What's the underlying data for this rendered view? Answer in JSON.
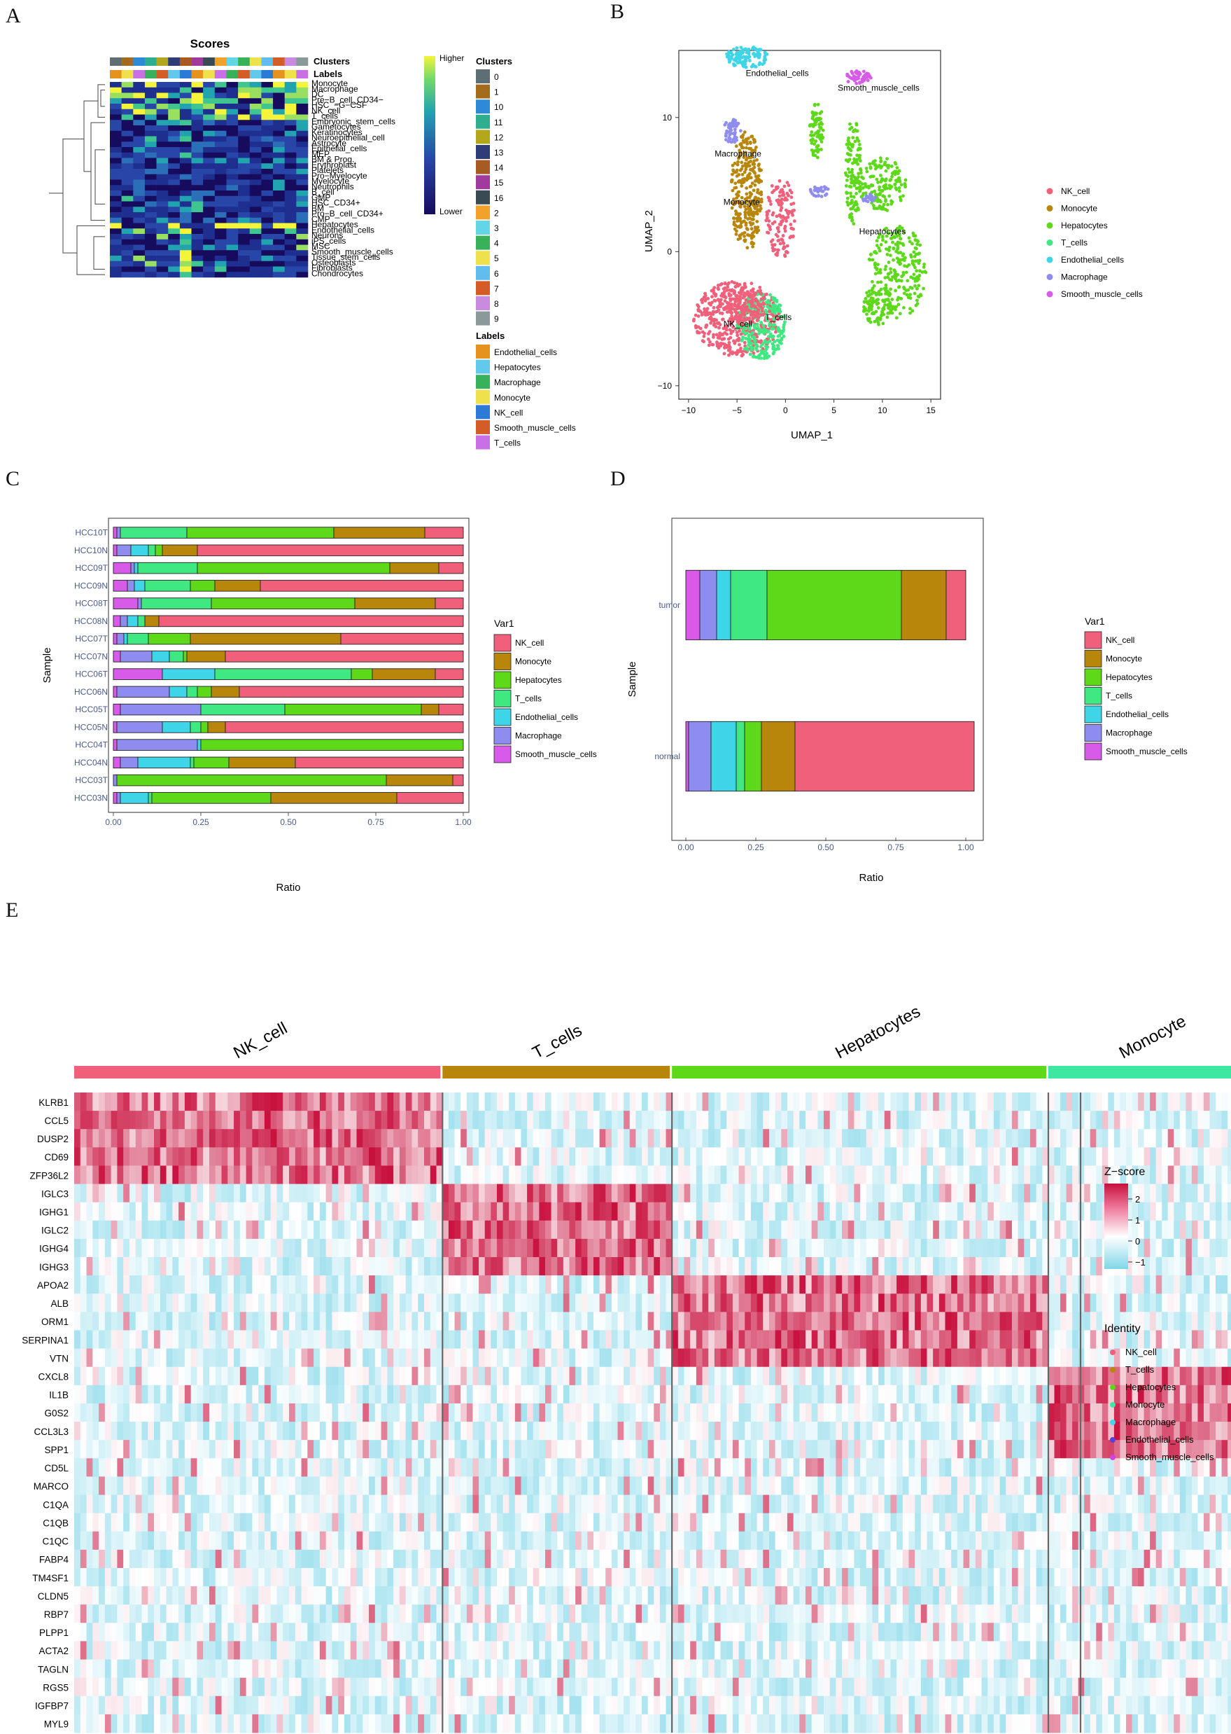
{
  "panels": {
    "a": "A",
    "b": "B",
    "c": "C",
    "d": "D",
    "e": "E"
  },
  "colors": {
    "NK_cell": "#F0607A",
    "Monocyte": "#B8860B",
    "Hepatocytes": "#5DD91A",
    "T_cells": "#3FE880",
    "Endothelial_cells": "#3FD5E8",
    "Macrophage": "#8F8CF0",
    "Smooth_muscle_cells": "#D75AE8"
  },
  "panelA": {
    "title": "Scores",
    "row_clusters": "Clusters",
    "row_labels": "Labels",
    "cell_types": [
      "Monocyte",
      "Macrophage",
      "DC",
      "Pre−B_cell_CD34−",
      "HSC_−G−CSF",
      "NK_cell",
      "T_cells",
      "Embryonic_stem_cells",
      "Gametocytes",
      "Keratinocytes",
      "Neuroepithelial_cell",
      "Astrocyte",
      "Epithelial_cells",
      "MEP",
      "BM & Prog.",
      "Erythroblast",
      "Platelets",
      "Pro−Myelocyte",
      "Myelocyte",
      "Neutrophils",
      "B_cell",
      "GMP",
      "HSC_CD34+",
      "BM",
      "Pro−B_cell_CD34+",
      "CMP",
      "Hepatocytes",
      "Endothelial_cells",
      "Neurons",
      "iPS_cells",
      "MSC",
      "Smooth_muscle_cells",
      "Tissue_stem_cells",
      "Osteoblasts",
      "Fibroblasts",
      "Chondrocytes"
    ],
    "scale_high": "Higher",
    "scale_low": "Lower",
    "clusters_legend_title": "Clusters",
    "clusters": [
      "0",
      "1",
      "10",
      "11",
      "12",
      "13",
      "14",
      "15",
      "16",
      "2",
      "3",
      "4",
      "5",
      "6",
      "7",
      "8",
      "9"
    ],
    "cluster_colors": [
      "#5E6E75",
      "#A56B1C",
      "#2E8AD6",
      "#2FAE8F",
      "#B3A81C",
      "#2E3D78",
      "#A75A22",
      "#A03A9D",
      "#3A4A55",
      "#F1A22A",
      "#62D6E6",
      "#37B15A",
      "#EEE14C",
      "#61BDEE",
      "#D45C27",
      "#C98BE0",
      "#8A9A9A"
    ],
    "labels_legend_title": "Labels",
    "labels": [
      "Endothelial_cells",
      "Hepatocytes",
      "Macrophage",
      "Monocyte",
      "NK_cell",
      "Smooth_muscle_cells",
      "T_cells"
    ],
    "label_colors": [
      "#E6921E",
      "#62C9EC",
      "#37B15A",
      "#EEE14C",
      "#2B7BD6",
      "#D45C27",
      "#C970E6"
    ]
  },
  "panelB": {
    "xlabel": "UMAP_1",
    "ylabel": "UMAP_2",
    "xticks": [
      "−10",
      "−5",
      "0",
      "5",
      "10",
      "15"
    ],
    "yticks": [
      "10",
      "0",
      "−10"
    ],
    "legend": [
      "NK_cell",
      "Monocyte",
      "Hepatocytes",
      "T_cells",
      "Endothelial_cells",
      "Macrophage",
      "Smooth_muscle_cells"
    ],
    "annotations": [
      "Endothelial_cells",
      "Smooth_muscle_cells",
      "Macrophage",
      "Monocyte",
      "Hepatocytes",
      "NK_cell",
      "T_cells"
    ]
  },
  "chart_data": [
    {
      "type": "bar",
      "orientation": "horizontal-stacked",
      "xlabel": "Ratio",
      "ylabel": "Sample",
      "xticks": [
        "0.00",
        "0.25",
        "0.50",
        "0.75",
        "1.00"
      ],
      "xlim": [
        0,
        1
      ],
      "legend_title": "Var1",
      "categories": [
        "HCC10T",
        "HCC10N",
        "HCC09T",
        "HCC09N",
        "HCC08T",
        "HCC08N",
        "HCC07T",
        "HCC07N",
        "HCC06T",
        "HCC06N",
        "HCC05T",
        "HCC05N",
        "HCC04T",
        "HCC04N",
        "HCC03T",
        "HCC03N"
      ],
      "series": [
        {
          "name": "Smooth_muscle_cells",
          "values": [
            0.01,
            0.01,
            0.05,
            0.04,
            0.07,
            0.02,
            0.01,
            0.02,
            0.14,
            0.01,
            0.02,
            0.01,
            0.01,
            0.02,
            0.0,
            0.01
          ]
        },
        {
          "name": "Macrophage",
          "values": [
            0.01,
            0.04,
            0.01,
            0.02,
            0.01,
            0.02,
            0.02,
            0.09,
            0.0,
            0.15,
            0.23,
            0.13,
            0.23,
            0.05,
            0.01,
            0.01
          ]
        },
        {
          "name": "Endothelial_cells",
          "values": [
            0.0,
            0.05,
            0.01,
            0.03,
            0.0,
            0.03,
            0.01,
            0.05,
            0.15,
            0.05,
            0.0,
            0.08,
            0.01,
            0.15,
            0.0,
            0.08
          ]
        },
        {
          "name": "T_cells",
          "values": [
            0.19,
            0.02,
            0.17,
            0.13,
            0.2,
            0.02,
            0.06,
            0.04,
            0.39,
            0.03,
            0.24,
            0.03,
            0.0,
            0.01,
            0.0,
            0.01
          ]
        },
        {
          "name": "Hepatocytes",
          "values": [
            0.42,
            0.02,
            0.55,
            0.07,
            0.41,
            0.0,
            0.12,
            0.01,
            0.06,
            0.04,
            0.39,
            0.02,
            0.75,
            0.1,
            0.77,
            0.34
          ]
        },
        {
          "name": "Monocyte",
          "values": [
            0.26,
            0.1,
            0.14,
            0.13,
            0.23,
            0.04,
            0.43,
            0.11,
            0.18,
            0.08,
            0.05,
            0.05,
            0.0,
            0.19,
            0.19,
            0.36
          ]
        },
        {
          "name": "NK_cell",
          "values": [
            0.11,
            0.76,
            0.07,
            0.58,
            0.08,
            0.87,
            0.35,
            0.68,
            0.08,
            0.64,
            0.07,
            0.68,
            0.0,
            0.48,
            0.03,
            0.19
          ]
        }
      ]
    },
    {
      "type": "bar",
      "orientation": "horizontal-stacked",
      "xlabel": "Ratio",
      "ylabel": "Sample",
      "xticks": [
        "0.00",
        "0.25",
        "0.50",
        "0.75",
        "1.00"
      ],
      "xlim": [
        0,
        1
      ],
      "legend_title": "Var1",
      "categories": [
        "tumor",
        "normal"
      ],
      "series": [
        {
          "name": "Smooth_muscle_cells",
          "values": [
            0.05,
            0.01
          ]
        },
        {
          "name": "Macrophage",
          "values": [
            0.06,
            0.08
          ]
        },
        {
          "name": "Endothelial_cells",
          "values": [
            0.05,
            0.09
          ]
        },
        {
          "name": "T_cells",
          "values": [
            0.13,
            0.03
          ]
        },
        {
          "name": "Hepatocytes",
          "values": [
            0.48,
            0.06
          ]
        },
        {
          "name": "Monocyte",
          "values": [
            0.16,
            0.12
          ]
        },
        {
          "name": "NK_cell",
          "values": [
            0.07,
            0.64
          ]
        }
      ]
    }
  ],
  "panelE": {
    "groups": [
      "NK_cell",
      "T_cells",
      "Hepatocytes",
      "Monocyte",
      "Macrophage",
      "Endothelial_cells",
      "Smooth_muscle_cells"
    ],
    "group_fractions": [
      0.366,
      0.228,
      0.374,
      0.19,
      0.088,
      0.05,
      0.042
    ],
    "group_colors": [
      "#F0607A",
      "#B8860B",
      "#5DD91A",
      "#3FE8A0",
      "#3FD5E8",
      "#8F8CF0",
      "#D75AE8"
    ],
    "genes": [
      "KLRB1",
      "CCL5",
      "DUSP2",
      "CD69",
      "ZFP36L2",
      "IGLC3",
      "IGHG1",
      "IGLC2",
      "IGHG4",
      "IGHG3",
      "APOA2",
      "ALB",
      "ORM1",
      "SERPINA1",
      "VTN",
      "CXCL8",
      "IL1B",
      "G0S2",
      "CCL3L3",
      "SPP1",
      "CD5L",
      "MARCO",
      "C1QA",
      "C1QB",
      "C1QC",
      "FABP4",
      "TM4SF1",
      "CLDN5",
      "RBP7",
      "PLPP1",
      "ACTA2",
      "TAGLN",
      "RGS5",
      "IGFBP7",
      "MYL9"
    ],
    "zscore_title": "Z−score",
    "zscore_ticks": [
      "2",
      "1",
      "0",
      "−1"
    ],
    "identity_title": "Identity",
    "identity_items": [
      "NK_cell",
      "T_cells",
      "Hepatocytes",
      "Monocyte",
      "Macrophage",
      "Endothelial_cells",
      "Smooth_muscle_cells"
    ],
    "identity_colors": [
      "#F0607A",
      "#B8860B",
      "#5DD91A",
      "#3FE8A0",
      "#3FD5E8",
      "#5B3FD6",
      "#D63FE0"
    ]
  }
}
